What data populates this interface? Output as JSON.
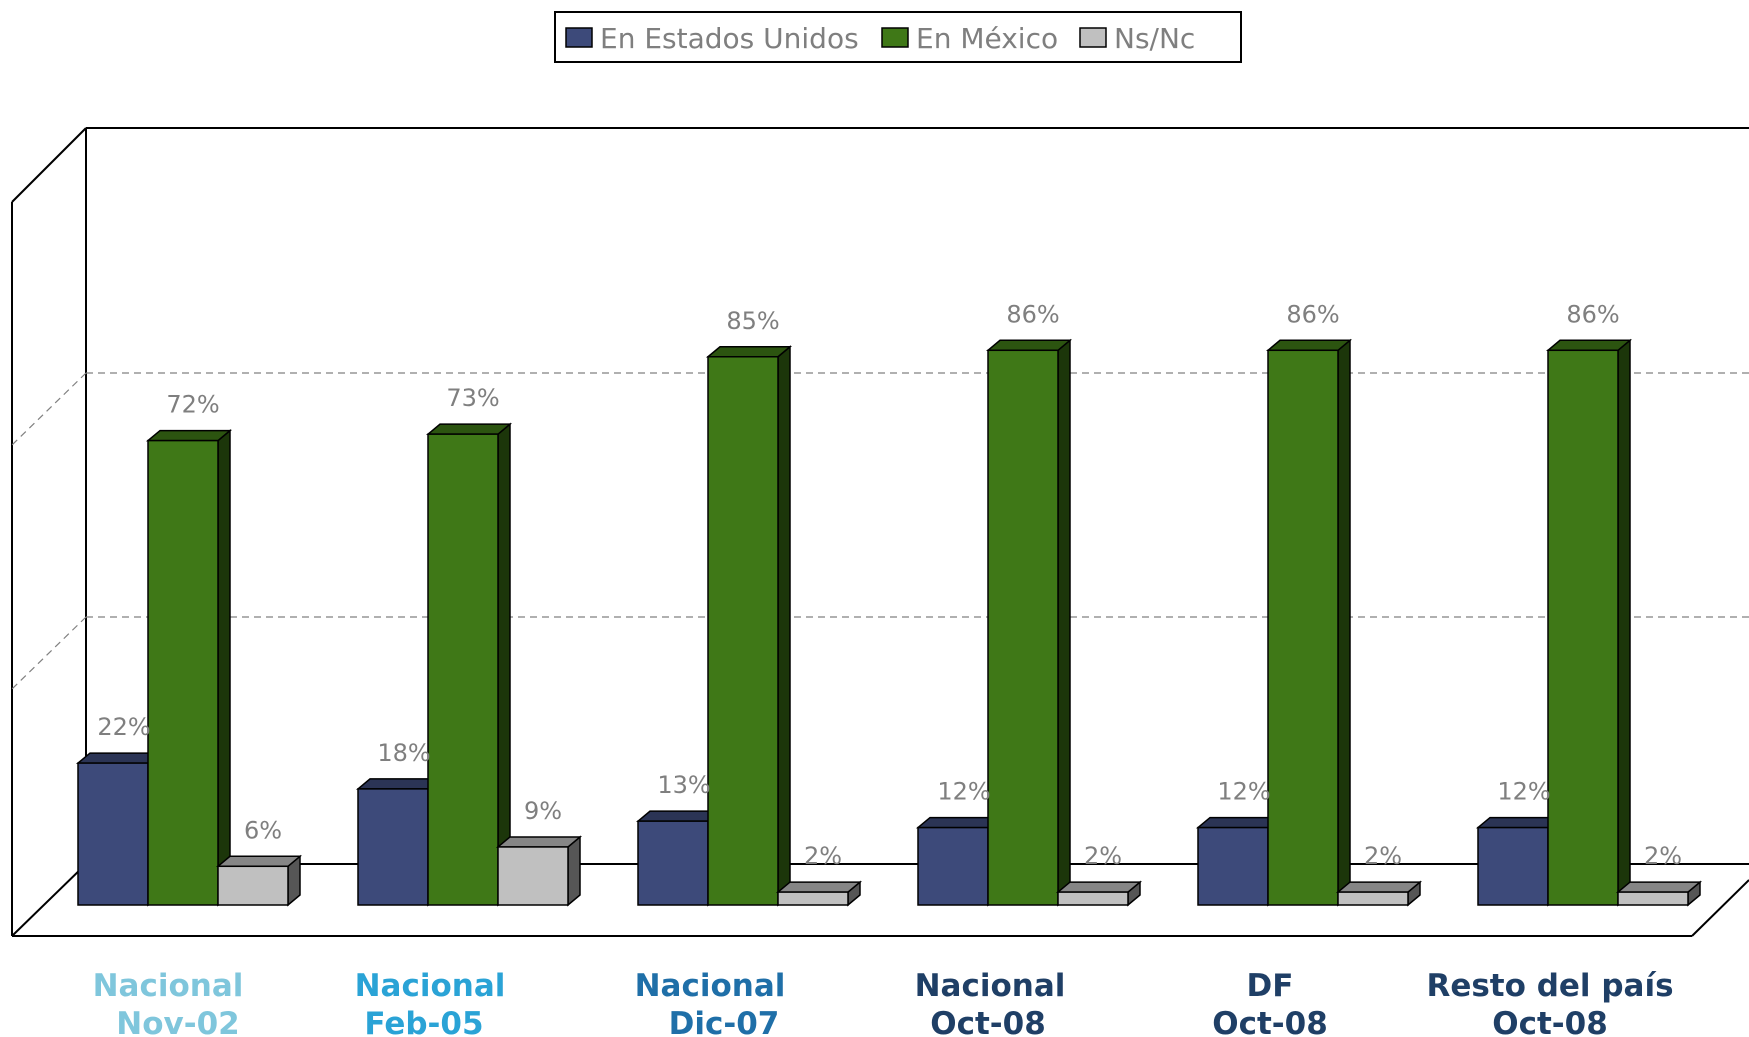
{
  "chart_data": {
    "type": "bar",
    "categories": [
      [
        "Nacional",
        "Nov-02"
      ],
      [
        "Nacional",
        "Feb-05"
      ],
      [
        "Nacional",
        "Dic-07"
      ],
      [
        "Nacional",
        "Oct-08"
      ],
      [
        "DF",
        "Oct-08"
      ],
      [
        "Resto del país",
        "Oct-08"
      ]
    ],
    "category_colors": [
      "#7fc6dc",
      "#2aa3d6",
      "#1f6fa8",
      "#1f3f66",
      "#1f3f66",
      "#1f3f66"
    ],
    "series": [
      {
        "name": "En Estados Unidos",
        "color": "#3d4a7a",
        "values": [
          22,
          18,
          13,
          12,
          12,
          12
        ],
        "labels": [
          "22%",
          "18%",
          "13%",
          "12%",
          "12%",
          "12%"
        ]
      },
      {
        "name": "En México",
        "color": "#3f7817",
        "values": [
          72,
          73,
          85,
          86,
          86,
          86
        ],
        "labels": [
          "72%",
          "73%",
          "85%",
          "86%",
          "86%",
          "86%"
        ]
      },
      {
        "name": "Ns/Nc",
        "color": "#c0c0c0",
        "values": [
          6,
          9,
          2,
          2,
          2,
          2
        ],
        "labels": [
          "6%",
          "9%",
          "2%",
          "2%",
          "2%",
          "2%"
        ]
      }
    ],
    "ylim": [
      0,
      100
    ],
    "grid": true,
    "legend": "top-center",
    "three_d": true
  }
}
